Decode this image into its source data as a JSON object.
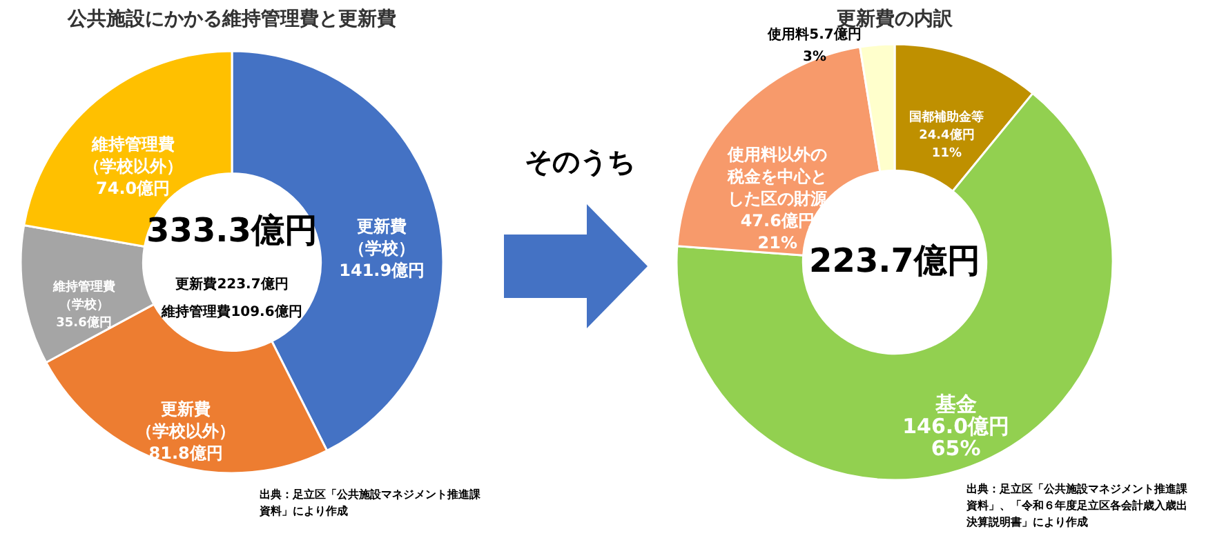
{
  "chart_data": [
    {
      "type": "donut",
      "title": "公共施設にかかる維持管理費と更新費",
      "categories": [
        "更新費（学校）",
        "更新費（学校以外）",
        "維持管理費（学校）",
        "維持管理費（学校以外）"
      ],
      "values": [
        141.9,
        81.8,
        35.6,
        74.0
      ],
      "colors": [
        "#4472c4",
        "#ed7d31",
        "#a5a5a5",
        "#ffc000"
      ],
      "value_labels": [
        "141.9億円",
        "81.8億円",
        "35.6億円",
        "74.0億円"
      ],
      "annotations": [
        "333.3億円",
        "更新費223.7億円",
        "維持管理費109.6億円",
        "出典：足立区「公共施設マネジメント推進課資料」により作成"
      ]
    },
    {
      "type": "other",
      "annotations": [
        "そのうち"
      ]
    },
    {
      "type": "donut",
      "title": "更新費の内訳",
      "categories": [
        "国都補助金等",
        "基金",
        "使用料以外の税金を中心とした区の財源",
        "使用料"
      ],
      "values": [
        24.4,
        146.0,
        47.6,
        5.7
      ],
      "colors": [
        "#bf9000",
        "#92d050",
        "#f79a6b",
        "#ffffcc"
      ],
      "value_labels": [
        "24.4億円\n11%",
        "146.0億円\n65%",
        "47.6億円\n21%",
        "5.7億円\n3%"
      ],
      "annotations": [
        "223.7億円",
        "出典：足立区「公共施設マネジメント推進課資料」、「令和６年度足立区各会計歳入歳出決算説明書」により作成"
      ]
    }
  ]
}
